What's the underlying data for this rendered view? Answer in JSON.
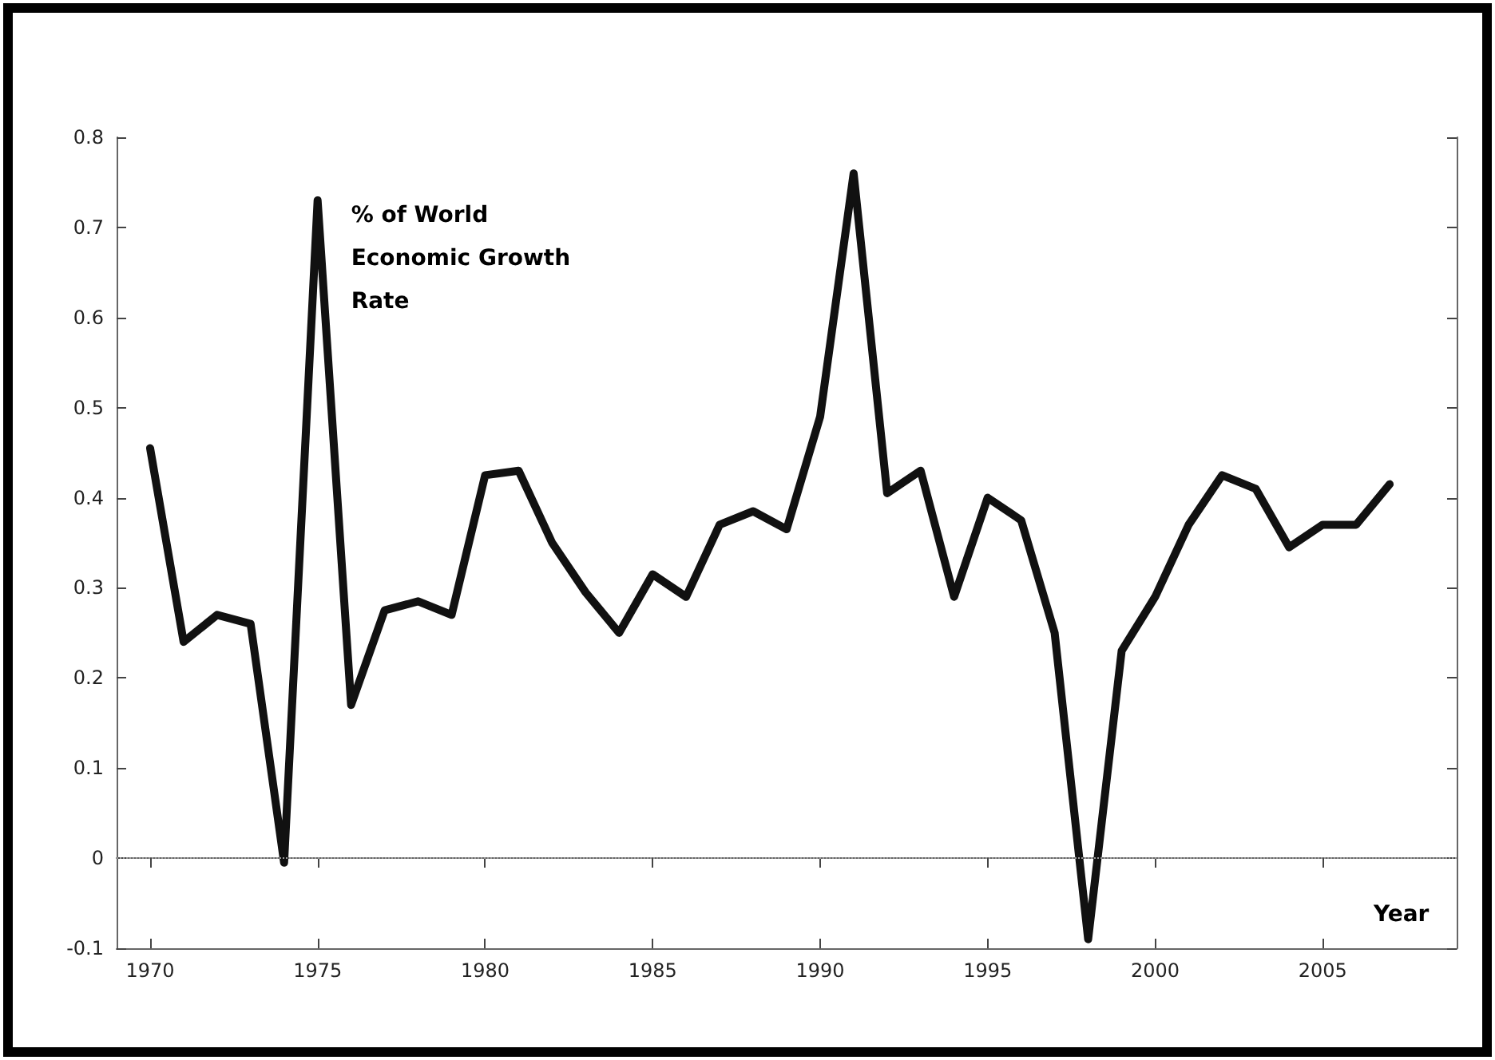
{
  "chart_data": {
    "type": "line",
    "xlabel": "Year",
    "annotations": [
      "% of World Economic Growth Rate"
    ],
    "x": [
      1970,
      1971,
      1972,
      1973,
      1974,
      1975,
      1976,
      1977,
      1978,
      1979,
      1980,
      1981,
      1982,
      1983,
      1984,
      1985,
      1986,
      1987,
      1988,
      1989,
      1990,
      1991,
      1992,
      1993,
      1994,
      1995,
      1996,
      1997,
      1998,
      1999,
      2000,
      2001,
      2002,
      2003,
      2004,
      2005,
      2006,
      2007
    ],
    "series": [
      {
        "color": "#111111",
        "values": [
          0.455,
          0.24,
          0.27,
          0.26,
          -0.005,
          0.73,
          0.17,
          0.275,
          0.285,
          0.27,
          0.425,
          0.43,
          0.35,
          0.295,
          0.25,
          0.315,
          0.29,
          0.37,
          0.385,
          0.365,
          0.49,
          0.76,
          0.405,
          0.43,
          0.29,
          0.4,
          0.375,
          0.25,
          -0.09,
          0.23,
          0.29,
          0.37,
          0.425,
          0.41,
          0.345,
          0.37,
          0.37,
          0.415
        ]
      }
    ],
    "xlim": [
      1969,
      2009
    ],
    "xticks": [
      1970,
      1975,
      1980,
      1985,
      1990,
      1995,
      2000,
      2005
    ],
    "ylim": [
      -0.1,
      0.8
    ],
    "yticks": [
      -0.1,
      0,
      0.1,
      0.2,
      0.3,
      0.4,
      0.5,
      0.6,
      0.7,
      0.8
    ],
    "ref_lines": [
      {
        "axis": "y",
        "value": 0,
        "line_style": "dotted",
        "color": "#999999"
      }
    ],
    "marker": "none",
    "line_style": "solid"
  }
}
